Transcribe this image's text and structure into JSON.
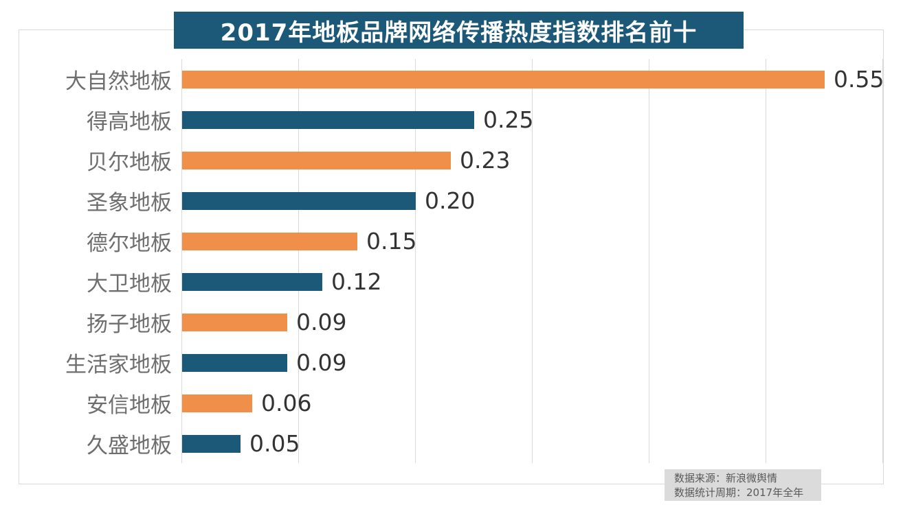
{
  "chart_data": {
    "type": "bar",
    "orientation": "horizontal",
    "title": "2017年地板品牌网络传播热度指数排名前十",
    "categories": [
      "大自然地板",
      "得高地板",
      "贝尔地板",
      "圣象地板",
      "德尔地板",
      "大卫地板",
      "扬子地板",
      "生活家地板",
      "安信地板",
      "久盛地板"
    ],
    "values": [
      0.55,
      0.25,
      0.23,
      0.2,
      0.15,
      0.12,
      0.09,
      0.09,
      0.06,
      0.05
    ],
    "value_labels": [
      "0.55",
      "0.25",
      "0.23",
      "0.20",
      "0.15",
      "0.12",
      "0.09",
      "0.09",
      "0.06",
      "0.05"
    ],
    "bar_color_pattern": "alternating",
    "bar_colors": [
      "#EF8F4A",
      "#1C5978",
      "#EF8F4A",
      "#1C5978",
      "#EF8F4A",
      "#1C5978",
      "#EF8F4A",
      "#1C5978",
      "#EF8F4A",
      "#1C5978"
    ],
    "xlabel": "",
    "ylabel": "",
    "xlim": [
      0,
      0.6
    ],
    "gridline_interval": 0.1,
    "grid": true,
    "legend": false
  },
  "source_note": {
    "line1": "数据来源：新浪微舆情",
    "line2": "数据统计周期：2017年全年"
  },
  "colors": {
    "orange": "#EF8F4A",
    "teal": "#1C5978",
    "title_bg": "#1C5978",
    "title_text": "#FFFFFF",
    "gridline": "#D9D9D9",
    "frame_border": "#D9D9D9",
    "category_label": "#6E6E6E",
    "value_label": "#333333",
    "source_bg": "#DBDBDB",
    "source_text": "#595959"
  }
}
